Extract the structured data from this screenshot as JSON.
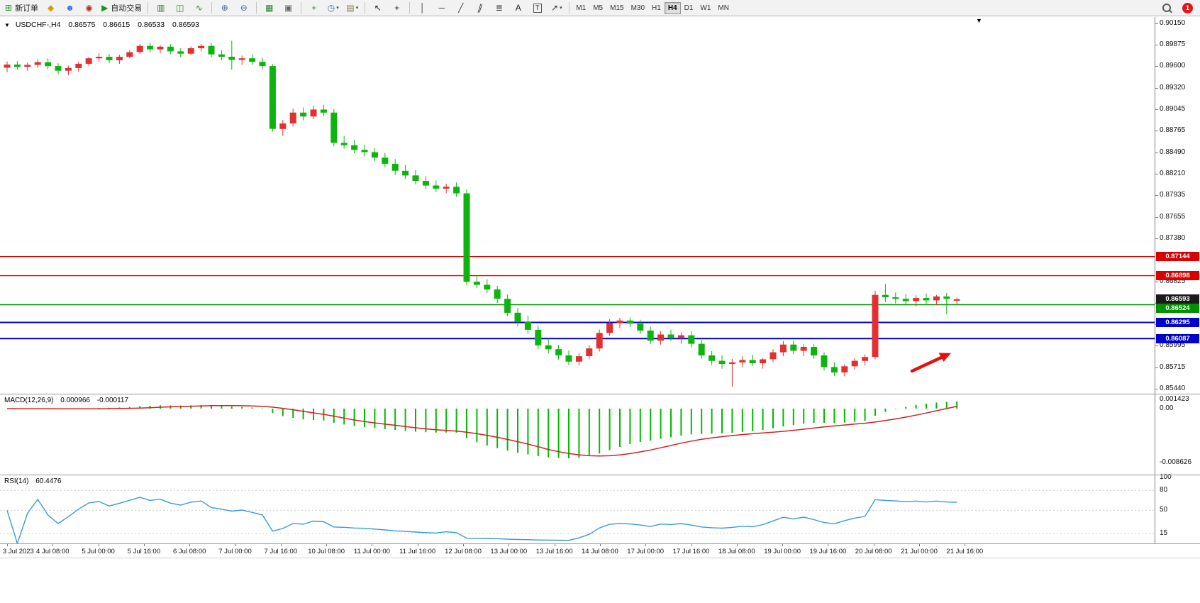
{
  "icons": {
    "collapse": "▼",
    "shift_marker": "▼",
    "caret": "▾"
  },
  "toolbar": {
    "badge_count": "1",
    "timeframes": [
      "M1",
      "M5",
      "M15",
      "M30",
      "H1",
      "H4",
      "D1",
      "W1",
      "MN"
    ],
    "active_timeframe": "H4",
    "buttons": [
      {
        "name": "new-order",
        "glyph": "⊞",
        "color": "#1f8f1f",
        "label": "新订单"
      },
      {
        "name": "metaeditor",
        "glyph": "◆",
        "color": "#d89b00"
      },
      {
        "name": "profiles",
        "glyph": "☻",
        "color": "#3b6fd4"
      },
      {
        "name": "mql5-community",
        "glyph": "◉",
        "color": "#b5342a"
      },
      {
        "name": "autotrading",
        "glyph": "▶",
        "color": "#1f8f1f",
        "label": "自动交易"
      },
      {
        "sep": true
      },
      {
        "name": "bar-chart",
        "glyph": "▥",
        "color": "#2e7d2e"
      },
      {
        "name": "candlestick-chart",
        "glyph": "◫",
        "color": "#2e7d2e"
      },
      {
        "name": "line-chart",
        "glyph": "∿",
        "color": "#2e7d2e"
      },
      {
        "sep": true
      },
      {
        "name": "zoom-in",
        "glyph": "⊕",
        "color": "#44699d"
      },
      {
        "name": "zoom-out",
        "glyph": "⊖",
        "color": "#44699d"
      },
      {
        "sep": true
      },
      {
        "name": "tile-windows",
        "glyph": "▦",
        "color": "#2e7d2e"
      },
      {
        "name": "cascade-windows",
        "glyph": "▣",
        "color": "#666666"
      },
      {
        "sep": true
      },
      {
        "name": "indicators",
        "glyph": "+",
        "color": "#1f8f1f"
      },
      {
        "name": "periods",
        "glyph": "◷",
        "color": "#44699d",
        "caret": true
      },
      {
        "name": "templates",
        "glyph": "▤",
        "color": "#8a7a50",
        "caret": true
      },
      {
        "sep": true
      },
      {
        "name": "cursor",
        "glyph": "↖",
        "color": "#222222"
      },
      {
        "name": "crosshair",
        "glyph": "+",
        "color": "#222222"
      },
      {
        "sep": true
      },
      {
        "name": "vertical-line",
        "glyph": "│",
        "color": "#333333"
      },
      {
        "name": "horizontal-line",
        "glyph": "─",
        "color": "#333333"
      },
      {
        "name": "trendline",
        "glyph": "╱",
        "color": "#333333"
      },
      {
        "name": "equidistant-channel",
        "glyph": "∥",
        "color": "#333333",
        "skew": true
      },
      {
        "name": "fibonacci",
        "glyph": "≣",
        "color": "#333333"
      },
      {
        "name": "text",
        "glyph": "A",
        "color": "#222222"
      },
      {
        "name": "text-label",
        "glyph": "T",
        "color": "#222222",
        "box": true
      },
      {
        "name": "arrows",
        "glyph": "↗",
        "color": "#333333",
        "caret": true
      },
      {
        "sep": true
      }
    ]
  },
  "chart_header": {
    "symbol_period": "USDCHF-,H4",
    "open": "0.86575",
    "high": "0.86615",
    "low": "0.86533",
    "close": "0.86593"
  },
  "price_axis": [
    "0.90150",
    "0.89875",
    "0.89600",
    "0.89320",
    "0.89045",
    "0.88765",
    "0.88490",
    "0.88210",
    "0.87935",
    "0.87655",
    "0.87380",
    "0.87105",
    "0.86825",
    "0.86550",
    "0.86270",
    "0.85995",
    "0.85715",
    "0.85440"
  ],
  "levels": [
    {
      "label": "0.87144",
      "value": 0.87144,
      "color": "#d80000",
      "thickness": 1.4
    },
    {
      "label": "0.86898",
      "value": 0.86898,
      "color": "#d80000",
      "thickness": 1.4
    },
    {
      "label": "0.86593",
      "value": 0.86593,
      "color": "#1a1a1a",
      "thickness": 1,
      "tag_only": true
    },
    {
      "label": "0.86524",
      "value": 0.86524,
      "color": "#009000",
      "thickness": 1.6
    },
    {
      "label": "0.86295",
      "value": 0.86295,
      "color": "#0000cc",
      "thickness": 2
    },
    {
      "label": "0.86087",
      "value": 0.86087,
      "color": "#0000cc",
      "thickness": 2
    }
  ],
  "time_axis": [
    "3 Jul 2023",
    "4 Jul 08:00",
    "5 Jul 00:00",
    "5 Jul 16:00",
    "6 Jul 08:00",
    "7 Jul 00:00",
    "7 Jul 16:00",
    "10 Jul 08:00",
    "11 Jul 00:00",
    "11 Jul 16:00",
    "12 Jul 08:00",
    "13 Jul 00:00",
    "13 Jul 16:00",
    "14 Jul 08:00",
    "17 Jul 00:00",
    "17 Jul 16:00",
    "18 Jul 08:00",
    "19 Jul 00:00",
    "19 Jul 16:00",
    "20 Jul 08:00",
    "21 Jul 00:00",
    "21 Jul 16:00"
  ],
  "chart_data": {
    "type": "candlestick",
    "symbol": "USDCHF",
    "period": "H4",
    "up_color": "#e03030",
    "down_color": "#0db40d",
    "price_top": 0.9015,
    "price_bottom": 0.8544,
    "candles": [
      [
        0.8958,
        0.8966,
        0.8952,
        0.8962
      ],
      [
        0.8962,
        0.89665,
        0.89555,
        0.8959
      ],
      [
        0.8959,
        0.89645,
        0.8954,
        0.89615
      ],
      [
        0.89615,
        0.89685,
        0.89575,
        0.8965
      ],
      [
        0.8965,
        0.897,
        0.8956,
        0.896
      ],
      [
        0.896,
        0.89635,
        0.89495,
        0.8954
      ],
      [
        0.8954,
        0.89605,
        0.8948,
        0.89575
      ],
      [
        0.89575,
        0.89655,
        0.89525,
        0.8963
      ],
      [
        0.8963,
        0.8972,
        0.896,
        0.897
      ],
      [
        0.897,
        0.89765,
        0.89655,
        0.8972
      ],
      [
        0.8972,
        0.89755,
        0.89635,
        0.89675
      ],
      [
        0.89675,
        0.89745,
        0.8963,
        0.8972
      ],
      [
        0.8972,
        0.89805,
        0.897,
        0.8978
      ],
      [
        0.8978,
        0.89885,
        0.89755,
        0.8986
      ],
      [
        0.8986,
        0.89905,
        0.89775,
        0.89815
      ],
      [
        0.89815,
        0.8987,
        0.89765,
        0.8985
      ],
      [
        0.8985,
        0.8988,
        0.89755,
        0.8979
      ],
      [
        0.8979,
        0.8983,
        0.89715,
        0.8976
      ],
      [
        0.8976,
        0.89855,
        0.8974,
        0.8983
      ],
      [
        0.8983,
        0.89885,
        0.8979,
        0.8986
      ],
      [
        0.8986,
        0.89895,
        0.89715,
        0.8975
      ],
      [
        0.8975,
        0.89805,
        0.89675,
        0.8972
      ],
      [
        0.8972,
        0.89925,
        0.89555,
        0.8968
      ],
      [
        0.8968,
        0.89735,
        0.89615,
        0.897
      ],
      [
        0.897,
        0.8975,
        0.89615,
        0.89655
      ],
      [
        0.89655,
        0.89705,
        0.89555,
        0.896
      ],
      [
        0.896,
        0.89625,
        0.88755,
        0.8879
      ],
      [
        0.8879,
        0.88905,
        0.887,
        0.8886
      ],
      [
        0.8886,
        0.8905,
        0.8882,
        0.89
      ],
      [
        0.89,
        0.89065,
        0.889,
        0.8895
      ],
      [
        0.8895,
        0.89085,
        0.88915,
        0.8904
      ],
      [
        0.8904,
        0.891,
        0.88955,
        0.89
      ],
      [
        0.89,
        0.89045,
        0.88565,
        0.8861
      ],
      [
        0.8861,
        0.887,
        0.88535,
        0.8858
      ],
      [
        0.8858,
        0.8865,
        0.88475,
        0.8852
      ],
      [
        0.8852,
        0.88585,
        0.88435,
        0.8849
      ],
      [
        0.8849,
        0.88545,
        0.88375,
        0.8842
      ],
      [
        0.8842,
        0.8848,
        0.88295,
        0.8834
      ],
      [
        0.8834,
        0.884,
        0.88195,
        0.8825
      ],
      [
        0.8825,
        0.88325,
        0.88145,
        0.8819
      ],
      [
        0.8819,
        0.8826,
        0.88075,
        0.8812
      ],
      [
        0.8812,
        0.8818,
        0.88015,
        0.8806
      ],
      [
        0.8806,
        0.88125,
        0.87975,
        0.8802
      ],
      [
        0.8802,
        0.88085,
        0.8796,
        0.88045
      ],
      [
        0.88045,
        0.881,
        0.87915,
        0.8796
      ],
      [
        0.8796,
        0.8801,
        0.86775,
        0.8682
      ],
      [
        0.8682,
        0.86905,
        0.86735,
        0.8678
      ],
      [
        0.8678,
        0.8685,
        0.86675,
        0.8672
      ],
      [
        0.8672,
        0.86765,
        0.86545,
        0.866
      ],
      [
        0.866,
        0.86655,
        0.86375,
        0.8642
      ],
      [
        0.8642,
        0.8648,
        0.86245,
        0.863
      ],
      [
        0.863,
        0.8638,
        0.86145,
        0.862
      ],
      [
        0.862,
        0.86255,
        0.85945,
        0.86
      ],
      [
        0.86,
        0.86085,
        0.85895,
        0.8595
      ],
      [
        0.8595,
        0.86005,
        0.85815,
        0.8587
      ],
      [
        0.8587,
        0.85935,
        0.85745,
        0.8579
      ],
      [
        0.8579,
        0.859,
        0.8574,
        0.8586
      ],
      [
        0.8586,
        0.86005,
        0.8582,
        0.8596
      ],
      [
        0.8596,
        0.86205,
        0.8592,
        0.8616
      ],
      [
        0.8616,
        0.86335,
        0.8612,
        0.8629
      ],
      [
        0.8629,
        0.86355,
        0.8622,
        0.8632
      ],
      [
        0.8632,
        0.8636,
        0.86235,
        0.8628
      ],
      [
        0.8628,
        0.8633,
        0.86145,
        0.8619
      ],
      [
        0.8619,
        0.8624,
        0.86015,
        0.8606
      ],
      [
        0.8606,
        0.86185,
        0.8601,
        0.8614
      ],
      [
        0.8614,
        0.862,
        0.86055,
        0.861
      ],
      [
        0.861,
        0.86165,
        0.8602,
        0.8613
      ],
      [
        0.8613,
        0.8618,
        0.85975,
        0.8602
      ],
      [
        0.8602,
        0.8607,
        0.85825,
        0.8587
      ],
      [
        0.8587,
        0.85925,
        0.85745,
        0.858
      ],
      [
        0.858,
        0.8587,
        0.857,
        0.8576
      ],
      [
        0.8576,
        0.85825,
        0.85465,
        0.8578
      ],
      [
        0.8578,
        0.85855,
        0.8572,
        0.8581
      ],
      [
        0.8581,
        0.8588,
        0.85735,
        0.8577
      ],
      [
        0.8577,
        0.8584,
        0.857,
        0.8582
      ],
      [
        0.8582,
        0.8595,
        0.8578,
        0.8591
      ],
      [
        0.8591,
        0.86055,
        0.8586,
        0.8601
      ],
      [
        0.8601,
        0.8606,
        0.85885,
        0.8593
      ],
      [
        0.8593,
        0.86015,
        0.8586,
        0.8598
      ],
      [
        0.8598,
        0.8602,
        0.85825,
        0.8587
      ],
      [
        0.8587,
        0.8591,
        0.85675,
        0.8572
      ],
      [
        0.8572,
        0.8578,
        0.85605,
        0.8565
      ],
      [
        0.8565,
        0.85755,
        0.856,
        0.8573
      ],
      [
        0.8573,
        0.85835,
        0.85685,
        0.858
      ],
      [
        0.858,
        0.8588,
        0.8574,
        0.8585
      ],
      [
        0.8585,
        0.86705,
        0.8582,
        0.8665
      ],
      [
        0.8665,
        0.8679,
        0.86555,
        0.8662
      ],
      [
        0.8662,
        0.8668,
        0.8654,
        0.866
      ],
      [
        0.866,
        0.8666,
        0.86515,
        0.8657
      ],
      [
        0.8657,
        0.86645,
        0.865,
        0.8661
      ],
      [
        0.8661,
        0.8667,
        0.86535,
        0.8658
      ],
      [
        0.8658,
        0.8665,
        0.8652,
        0.8663
      ],
      [
        0.8663,
        0.86675,
        0.864,
        0.866
      ],
      [
        0.86575,
        0.86615,
        0.86533,
        0.86593
      ]
    ]
  },
  "macd": {
    "title": "MACD(12,26,9)",
    "main_value": "0.000966",
    "signal_value": "-0.000117",
    "scale": [
      "0.001423",
      "0.00",
      "-0.008626"
    ],
    "fast": 12,
    "slow": 26,
    "smoothing": 9,
    "histogram_color": "#00bb00",
    "signal_color": "#d42020"
  },
  "rsi": {
    "title": "RSI(14)",
    "value": "60.4476",
    "period": 14,
    "scale": [
      "100",
      "80",
      "50",
      "15"
    ],
    "levels": [
      80,
      50,
      15
    ],
    "line_color": "#3a9ad9"
  },
  "annotation_arrow": {
    "color": "#e8100c"
  }
}
